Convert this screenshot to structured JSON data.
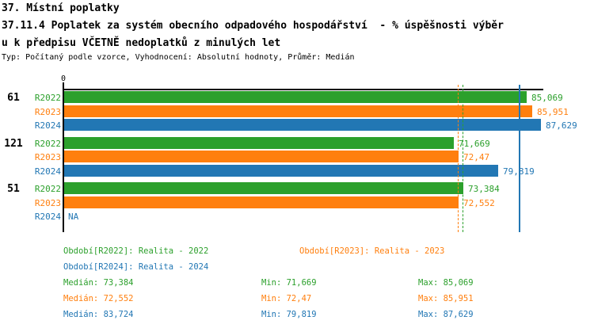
{
  "header": {
    "line1": "37. Místní poplatky",
    "line2": "37.11.4 Poplatek za systém obecního odpadového hospodářství  - % úspěšnosti výběr",
    "line3": "u k předpisu VČETNĚ nedoplatků z minulých let",
    "meta": "Typ: Počítaný podle vzorce, Vyhodnocení: Absolutní hodnoty, Průměr: Medián"
  },
  "colors": {
    "r2022": "#2ca02c",
    "r2023": "#ff7f0e",
    "r2024": "#2277b4",
    "axis": "#000000"
  },
  "chart_data": {
    "type": "bar",
    "orientation": "horizontal",
    "xlim": [
      0,
      88.2
    ],
    "axis_zero_label": "0",
    "grid": false,
    "groups": [
      {
        "label": "61"
      },
      {
        "label": "121"
      },
      {
        "label": "51"
      }
    ],
    "series": [
      {
        "name": "R2022",
        "color": "#2ca02c",
        "values": [
          85.069,
          71.669,
          73.384
        ],
        "value_labels": [
          "85,069",
          "71,669",
          "73,384"
        ]
      },
      {
        "name": "R2023",
        "color": "#ff7f0e",
        "values": [
          85.951,
          72.47,
          72.552
        ],
        "value_labels": [
          "85,951",
          "72,47",
          "72,552"
        ]
      },
      {
        "name": "R2024",
        "color": "#2277b4",
        "values": [
          87.629,
          79.819,
          null
        ],
        "value_labels": [
          "87,629",
          "79,819",
          "NA"
        ]
      }
    ],
    "median_lines": [
      {
        "series": "R2022",
        "value": 73.384,
        "color": "#2ca02c",
        "style": "dashed"
      },
      {
        "series": "R2023",
        "value": 72.552,
        "color": "#ff7f0e",
        "style": "dashed"
      },
      {
        "series": "R2024",
        "value": 83.724,
        "color": "#2277b4",
        "style": "solid"
      }
    ]
  },
  "legend": {
    "items": [
      {
        "label": "Období[R2022]: Realita - 2022",
        "color": "#2ca02c"
      },
      {
        "label": "Období[R2023]: Realita - 2023",
        "color": "#ff7f0e"
      },
      {
        "label": "Období[R2024]: Realita - 2024",
        "color": "#2277b4"
      }
    ],
    "stats": [
      {
        "median_label": "Medián: 73,384",
        "min_label": "Min: 71,669",
        "max_label": "Max: 85,069",
        "color": "#2ca02c"
      },
      {
        "median_label": "Medián: 72,552",
        "min_label": "Min: 72,47",
        "max_label": "Max: 85,951",
        "color": "#ff7f0e"
      },
      {
        "median_label": "Medián: 83,724",
        "min_label": "Min: 79,819",
        "max_label": "Max: 87,629",
        "color": "#2277b4"
      }
    ]
  }
}
